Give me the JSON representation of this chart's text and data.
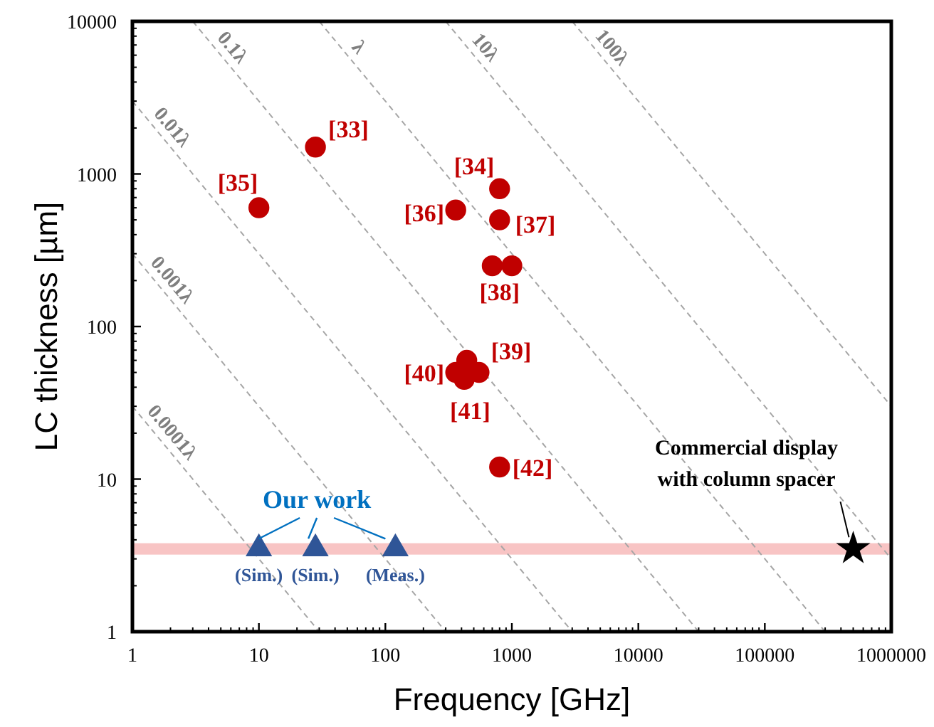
{
  "chart_data": {
    "type": "scatter",
    "xlabel": "Frequency [GHz]",
    "ylabel": "LC thickness [µm]",
    "log": "xy",
    "xlim": [
      1,
      1000000
    ],
    "ylim": [
      1,
      10000
    ],
    "xticks": [
      1,
      10,
      100,
      1000,
      10000,
      100000,
      1000000
    ],
    "yticks": [
      1,
      10,
      100,
      1000,
      10000
    ],
    "bands": [
      {
        "axis": "y",
        "from": 3.2,
        "to": 3.8,
        "color": "#f8c4c4"
      }
    ],
    "series": [
      {
        "name": "0.0001λ",
        "type": "line",
        "color": "#a6a6a6",
        "line_style": "dashed",
        "marker": "none",
        "x": [
          1,
          30
        ],
        "values": [
          30,
          1
        ]
      },
      {
        "name": "0.001λ",
        "type": "line",
        "color": "#a6a6a6",
        "line_style": "dashed",
        "marker": "none",
        "x": [
          1,
          300
        ],
        "values": [
          300,
          1
        ]
      },
      {
        "name": "0.01λ",
        "type": "line",
        "color": "#a6a6a6",
        "line_style": "dashed",
        "marker": "none",
        "x": [
          1,
          3000
        ],
        "values": [
          3000,
          1
        ]
      },
      {
        "name": "0.1λ",
        "type": "line",
        "color": "#a6a6a6",
        "line_style": "dashed",
        "marker": "none",
        "x": [
          3,
          30000
        ],
        "values": [
          10000,
          1
        ]
      },
      {
        "name": "λ",
        "type": "line",
        "color": "#a6a6a6",
        "line_style": "dashed",
        "marker": "none",
        "x": [
          30,
          300000
        ],
        "values": [
          10000,
          1
        ]
      },
      {
        "name": "10λ",
        "type": "line",
        "color": "#a6a6a6",
        "line_style": "dashed",
        "marker": "none",
        "x": [
          300,
          1000000
        ],
        "values": [
          10000,
          3
        ]
      },
      {
        "name": "100λ",
        "type": "line",
        "color": "#a6a6a6",
        "line_style": "dashed",
        "marker": "none",
        "x": [
          3000,
          1000000
        ],
        "values": [
          10000,
          30
        ]
      },
      {
        "color": "#c00000",
        "marker": "circle",
        "x": [
          28,
          10,
          360,
          800,
          800,
          700,
          1000,
          440,
          360,
          420,
          550,
          800
        ],
        "values": [
          1500,
          600,
          580,
          800,
          500,
          250,
          250,
          60,
          50,
          45,
          50,
          12
        ]
      },
      {
        "color": "#2f5597",
        "marker": "triangle",
        "x": [
          10,
          28,
          120
        ],
        "values": [
          3.5,
          3.5,
          3.5
        ]
      },
      {
        "color": "#000000",
        "marker": "star",
        "x": [
          500000
        ],
        "values": [
          3.5
        ]
      }
    ],
    "annotations": [
      {
        "text": "[33]",
        "x": 28,
        "y": 1500
      },
      {
        "text": "[35]",
        "x": 10,
        "y": 600
      },
      {
        "text": "[36]",
        "x": 360,
        "y": 580
      },
      {
        "text": "[34]",
        "x": 800,
        "y": 800
      },
      {
        "text": "[37]",
        "x": 800,
        "y": 500
      },
      {
        "text": "[38]",
        "x": 700,
        "y": 250
      },
      {
        "text": "[39]",
        "x": 440,
        "y": 60
      },
      {
        "text": "[40]",
        "x": 360,
        "y": 50
      },
      {
        "text": "[41]",
        "x": 420,
        "y": 45
      },
      {
        "text": "[42]",
        "x": 800,
        "y": 12
      },
      {
        "text": "(Sim.)",
        "x": 10,
        "y": 3.5
      },
      {
        "text": "(Sim.)",
        "x": 28,
        "y": 3.5
      },
      {
        "text": "(Meas.)",
        "x": 120,
        "y": 3.5
      },
      {
        "text": "Commercial display with column spacer",
        "x": 500000,
        "y": 3.5
      },
      "Our work"
    ]
  }
}
